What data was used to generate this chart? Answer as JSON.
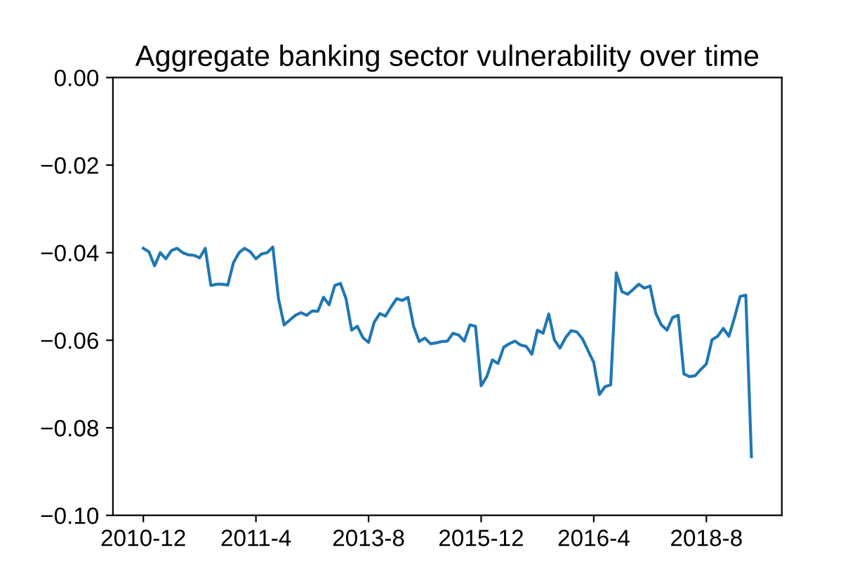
{
  "chart_data": {
    "type": "line",
    "title": "Aggregate banking sector vulnerability over time",
    "categories": [
      "2010-12",
      null,
      null,
      null,
      null,
      null,
      null,
      null,
      null,
      null,
      null,
      null,
      null,
      null,
      null,
      null,
      null,
      null,
      null,
      null,
      "2011-4",
      null,
      null,
      null,
      null,
      null,
      null,
      null,
      null,
      null,
      null,
      null,
      null,
      null,
      null,
      null,
      null,
      null,
      null,
      null,
      "2013-8",
      null,
      null,
      null,
      null,
      null,
      null,
      null,
      null,
      null,
      null,
      null,
      null,
      null,
      null,
      null,
      null,
      null,
      null,
      null,
      "2015-12",
      null,
      null,
      null,
      null,
      null,
      null,
      null,
      null,
      null,
      null,
      null,
      null,
      null,
      null,
      null,
      null,
      null,
      null,
      null,
      "2016-4",
      null,
      null,
      null,
      null,
      null,
      null,
      null,
      null,
      null,
      null,
      null,
      null,
      null,
      null,
      null,
      null,
      null,
      null,
      null,
      "2018-8",
      null,
      null,
      null,
      null,
      null,
      null,
      null,
      null
    ],
    "series": [
      {
        "color": "#1f77b4",
        "values": [
          -0.039,
          -0.0398,
          -0.043,
          -0.04,
          -0.0414,
          -0.0395,
          -0.039,
          -0.04,
          -0.0405,
          -0.0406,
          -0.0412,
          -0.039,
          -0.0475,
          -0.0472,
          -0.0472,
          -0.0474,
          -0.0423,
          -0.04,
          -0.039,
          -0.0398,
          -0.0414,
          -0.0403,
          -0.04,
          -0.0387,
          -0.0505,
          -0.0565,
          -0.0554,
          -0.0543,
          -0.0537,
          -0.0543,
          -0.0533,
          -0.0534,
          -0.0502,
          -0.0519,
          -0.0475,
          -0.047,
          -0.0505,
          -0.0577,
          -0.0568,
          -0.0594,
          -0.0605,
          -0.0559,
          -0.0539,
          -0.0545,
          -0.0524,
          -0.0505,
          -0.0509,
          -0.0502,
          -0.0568,
          -0.0603,
          -0.0595,
          -0.0608,
          -0.0606,
          -0.0603,
          -0.0602,
          -0.0584,
          -0.0588,
          -0.0602,
          -0.0565,
          -0.0568,
          -0.0704,
          -0.0683,
          -0.0645,
          -0.0653,
          -0.0616,
          -0.0608,
          -0.0602,
          -0.0611,
          -0.0614,
          -0.0632,
          -0.0577,
          -0.0584,
          -0.054,
          -0.0599,
          -0.0618,
          -0.0594,
          -0.0578,
          -0.0581,
          -0.0597,
          -0.0624,
          -0.0651,
          -0.0724,
          -0.0706,
          -0.0702,
          -0.0446,
          -0.0489,
          -0.0495,
          -0.0484,
          -0.0472,
          -0.0481,
          -0.0476,
          -0.0538,
          -0.0565,
          -0.0577,
          -0.0548,
          -0.0543,
          -0.0677,
          -0.0683,
          -0.0681,
          -0.0667,
          -0.0654,
          -0.0599,
          -0.0591,
          -0.0573,
          -0.0591,
          -0.0548,
          -0.05,
          -0.0497,
          -0.0866
        ]
      }
    ],
    "ylim": [
      -0.1,
      0
    ],
    "yticks": [
      {
        "value": -0.1,
        "label": "−0.10"
      },
      {
        "value": -0.08,
        "label": "−0.08"
      },
      {
        "value": -0.06,
        "label": "−0.06"
      },
      {
        "value": -0.04,
        "label": "−0.04"
      },
      {
        "value": -0.02,
        "label": "−0.02"
      },
      {
        "value": 0,
        "label": "0.00"
      }
    ],
    "grid": false,
    "marker": "none",
    "line_style": "solid"
  }
}
